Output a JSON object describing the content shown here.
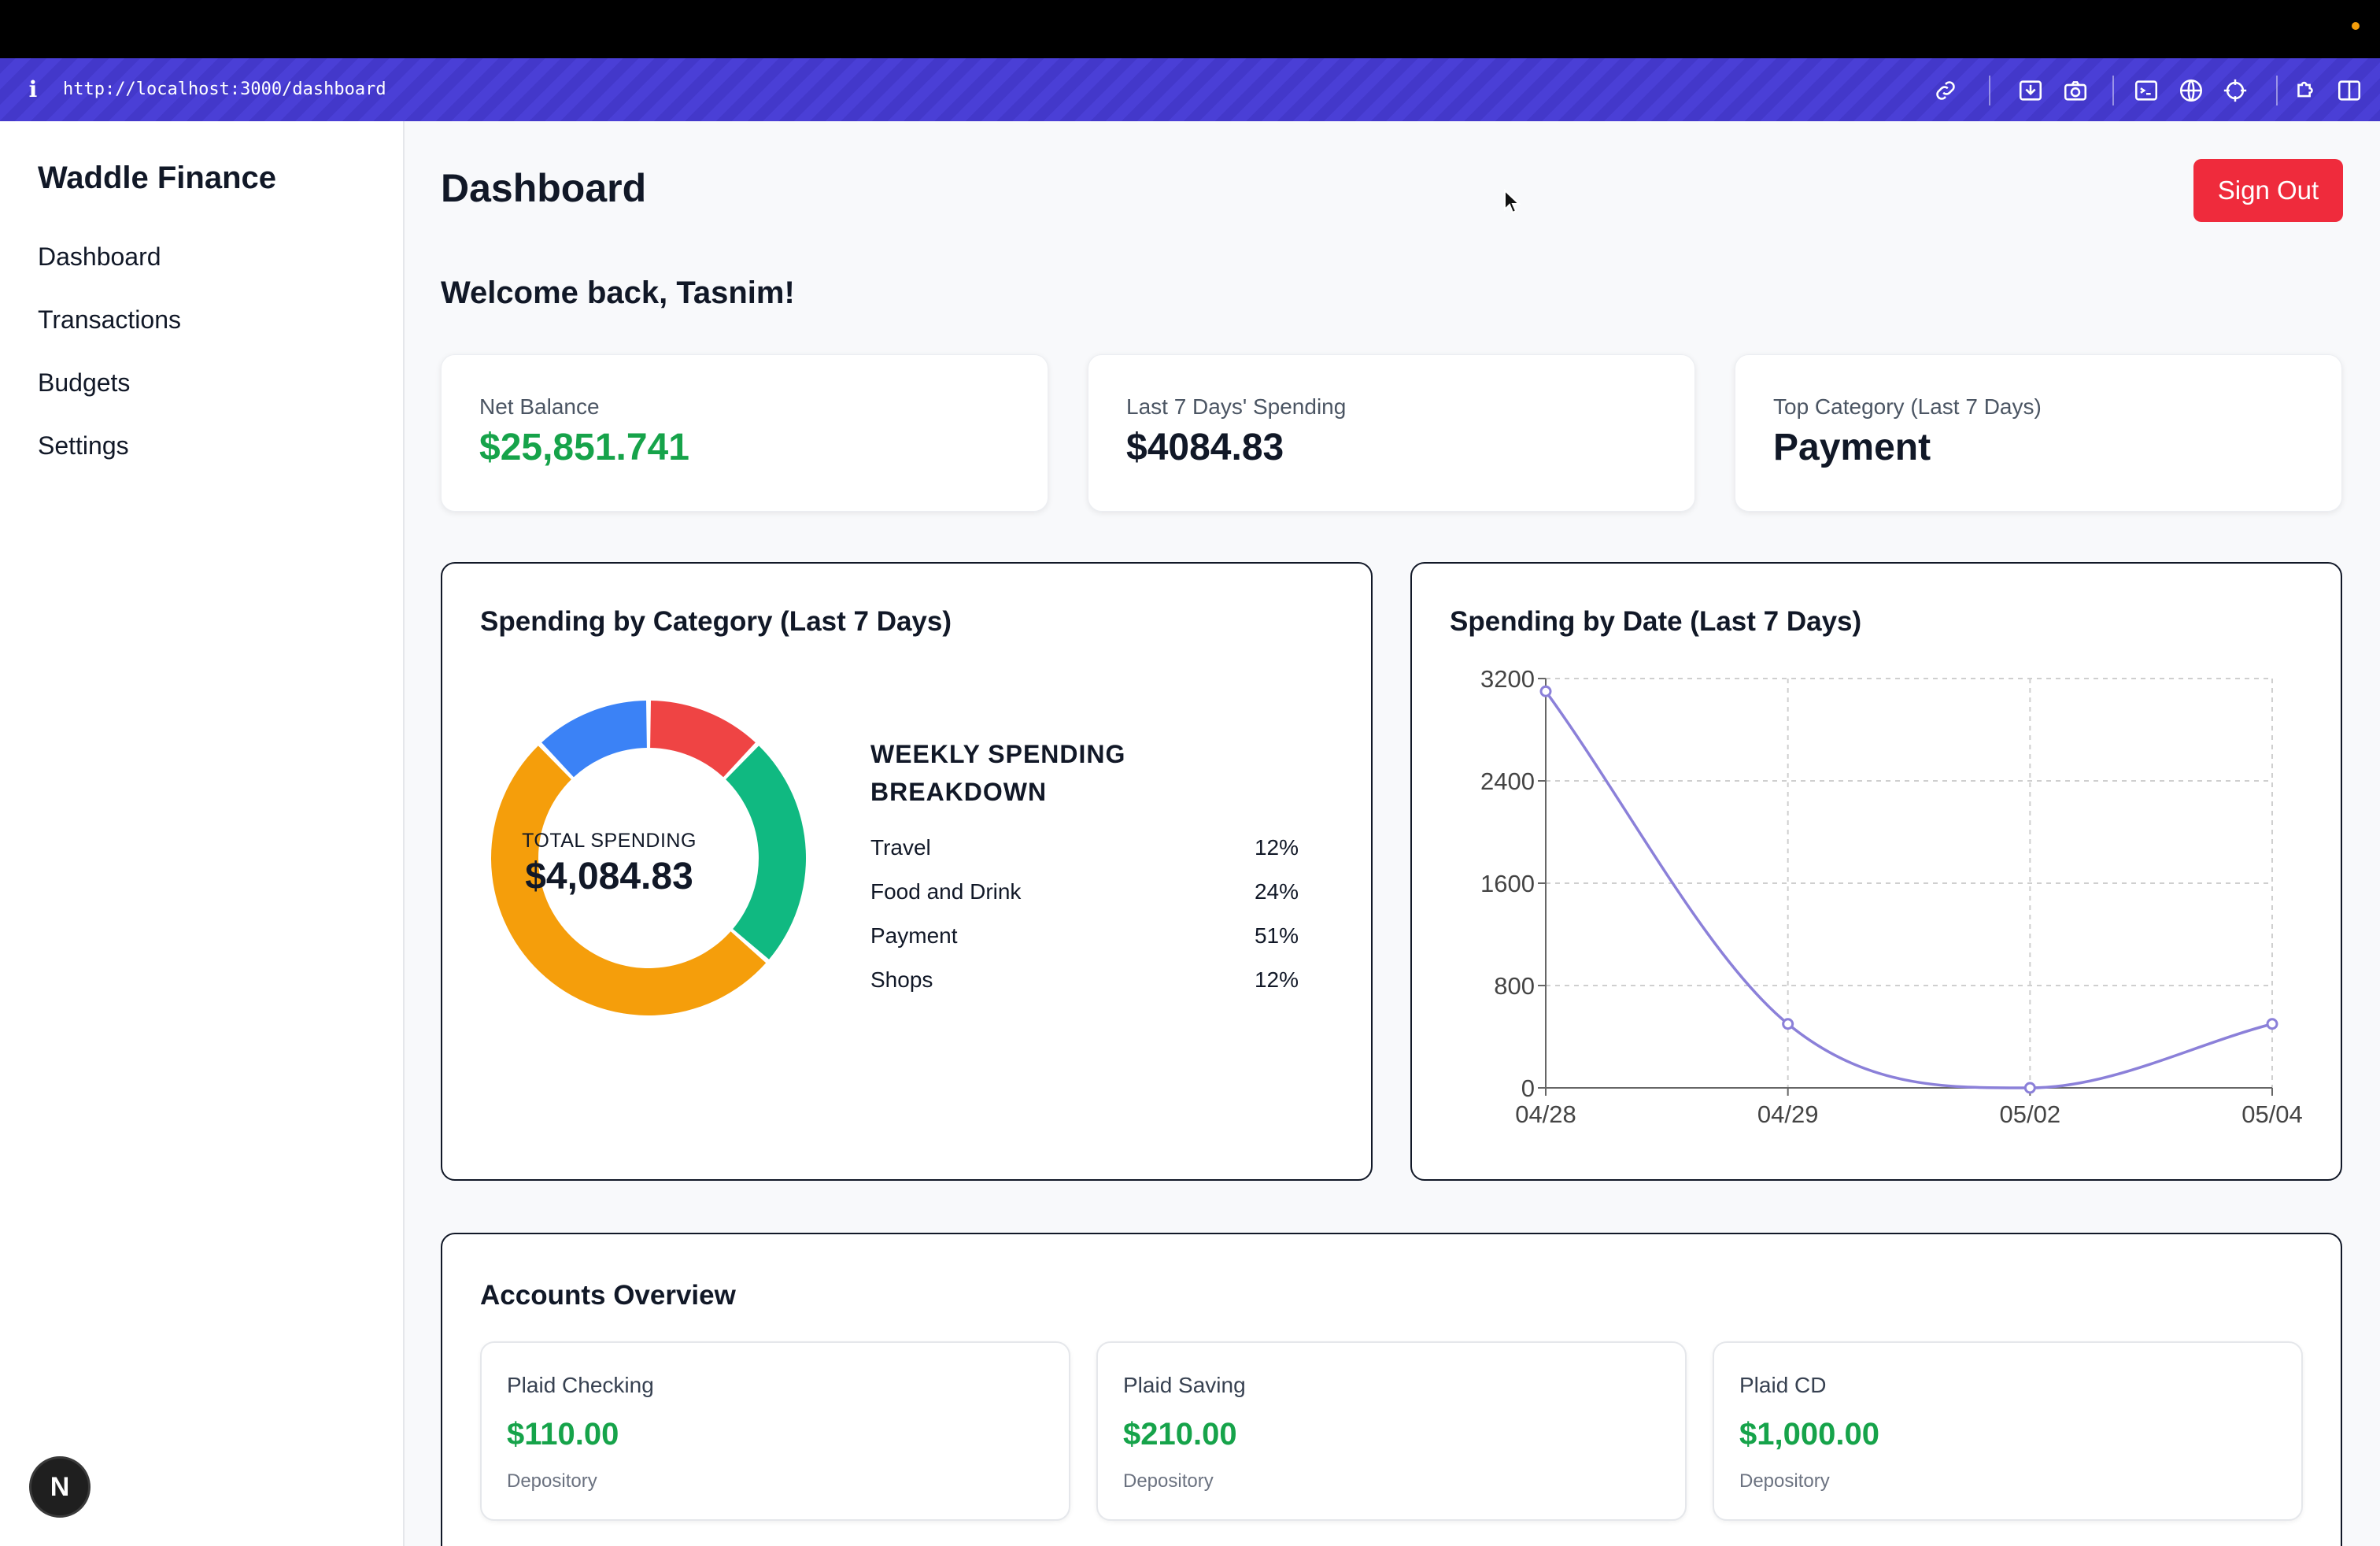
{
  "browser": {
    "url": "http://localhost:3000/dashboard",
    "info_icon": "info-icon",
    "toolbar_icons": [
      "link-icon",
      "download-icon",
      "camera-icon",
      "terminal-icon",
      "globe-icon",
      "crosshair-icon",
      "puzzle-icon",
      "split-view-icon"
    ]
  },
  "sidebar": {
    "brand": "Waddle Finance",
    "items": [
      {
        "label": "Dashboard"
      },
      {
        "label": "Transactions"
      },
      {
        "label": "Budgets"
      },
      {
        "label": "Settings"
      }
    ],
    "badge": "N"
  },
  "header": {
    "title": "Dashboard",
    "sign_out": "Sign Out"
  },
  "welcome": "Welcome back, Tasnim!",
  "stats": [
    {
      "label": "Net Balance",
      "value": "$25,851.741",
      "color": "#16a34a"
    },
    {
      "label": "Last 7 Days' Spending",
      "value": "$4084.83"
    },
    {
      "label": "Top Category (Last 7 Days)",
      "value": "Payment"
    }
  ],
  "category_panel": {
    "title": "Spending by Category (Last 7 Days)",
    "center_label": "TOTAL SPENDING",
    "center_value": "$4,084.83",
    "breakdown_title": "WEEKLY SPENDING BREAKDOWN",
    "rows": [
      {
        "name": "Travel",
        "pct": "12%"
      },
      {
        "name": "Food and Drink",
        "pct": "24%"
      },
      {
        "name": "Payment",
        "pct": "51%"
      },
      {
        "name": "Shops",
        "pct": "12%"
      }
    ]
  },
  "date_panel": {
    "title": "Spending by Date (Last 7 Days)"
  },
  "chart_data": [
    {
      "type": "pie",
      "categories": [
        "Travel",
        "Food and Drink",
        "Payment",
        "Shops"
      ],
      "values": [
        12,
        24,
        51,
        12
      ],
      "colors": [
        "#ef4444",
        "#10b981",
        "#f59e0b",
        "#3b82f6"
      ],
      "donut": true
    },
    {
      "type": "line",
      "x": [
        "04/28",
        "04/29",
        "05/02",
        "05/04"
      ],
      "y": [
        3100,
        500,
        0,
        500
      ],
      "ylim": [
        0,
        3200
      ],
      "yticks": [
        0,
        800,
        1600,
        2400,
        3200
      ],
      "grid": true,
      "color": "#8b80d9"
    }
  ],
  "accounts": {
    "title": "Accounts Overview",
    "items": [
      {
        "name": "Plaid Checking",
        "balance": "$110.00",
        "type": "Depository"
      },
      {
        "name": "Plaid Saving",
        "balance": "$210.00",
        "type": "Depository"
      },
      {
        "name": "Plaid CD",
        "balance": "$1,000.00",
        "type": "Depository"
      }
    ]
  }
}
